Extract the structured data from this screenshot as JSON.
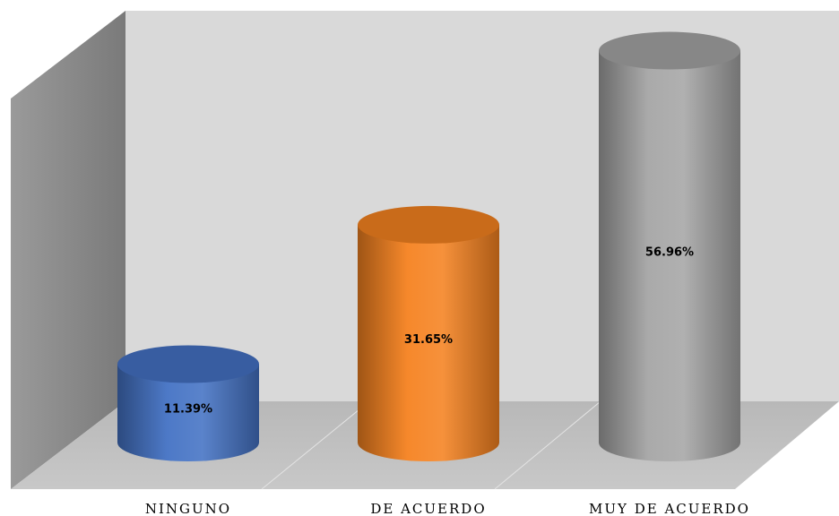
{
  "chart_data": {
    "type": "bar",
    "style": "3d-cylinder",
    "categories": [
      "NINGUNO",
      "DE ACUERDO",
      "MUY DE ACUERDO"
    ],
    "values": [
      11.39,
      31.65,
      56.96
    ],
    "value_labels": [
      "11.39%",
      "31.65%",
      "56.96%"
    ],
    "colors": [
      "#4472c4",
      "#f58220",
      "#a5a5a5"
    ],
    "unit": "%",
    "ylim": [
      0,
      60
    ],
    "grid": false,
    "legend": "none",
    "title": "",
    "xlabel": "",
    "ylabel": ""
  }
}
